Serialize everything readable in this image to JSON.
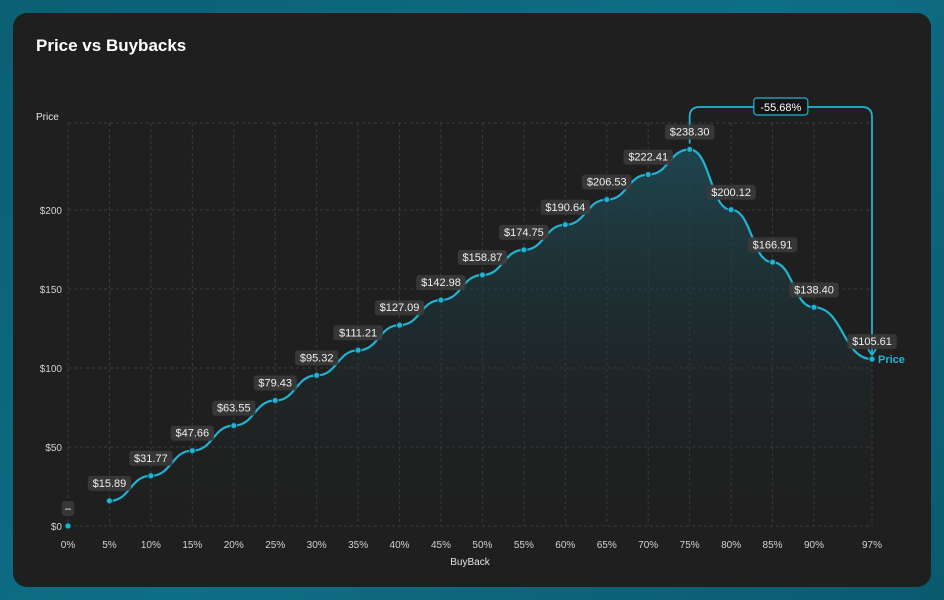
{
  "chart_data": {
    "type": "area",
    "title": "Price vs Buybacks",
    "xlabel": "BuyBack",
    "ylabel": "Price",
    "categories": [
      "0%",
      "5%",
      "10%",
      "15%",
      "20%",
      "25%",
      "30%",
      "35%",
      "40%",
      "45%",
      "50%",
      "55%",
      "60%",
      "65%",
      "70%",
      "75%",
      "80%",
      "85%",
      "90%",
      "97%"
    ],
    "x": [
      0,
      5,
      10,
      15,
      20,
      25,
      30,
      35,
      40,
      45,
      50,
      55,
      60,
      65,
      70,
      75,
      80,
      85,
      90,
      97
    ],
    "series": [
      {
        "name": "Price",
        "values": [
          0,
          15.89,
          31.77,
          47.66,
          63.55,
          79.43,
          95.32,
          111.21,
          127.09,
          142.98,
          158.87,
          174.75,
          190.64,
          206.53,
          222.41,
          238.3,
          200.12,
          166.91,
          138.4,
          105.61
        ],
        "labels": [
          "–",
          "$15.89",
          "$31.77",
          "$47.66",
          "$63.55",
          "$79.43",
          "$95.32",
          "$111.21",
          "$127.09",
          "$142.98",
          "$158.87",
          "$174.75",
          "$190.64",
          "$206.53",
          "$222.41",
          "$238.30",
          "$200.12",
          "$166.91",
          "$138.40",
          "$105.61"
        ]
      }
    ],
    "yticks": [
      0,
      50,
      100,
      150,
      200
    ],
    "ytick_labels": [
      "$0",
      "$50",
      "$100",
      "$150",
      "$200"
    ],
    "ylim": [
      0,
      250
    ],
    "xlim": [
      0,
      97
    ],
    "grid": true,
    "annotation": {
      "text": "-55.68%",
      "from": "75%",
      "to": "97%"
    },
    "colors": {
      "line": "#22b3d3",
      "point": "#22b3d3",
      "area_top": "#1d4c57",
      "grid": "#3d3d3d"
    }
  }
}
